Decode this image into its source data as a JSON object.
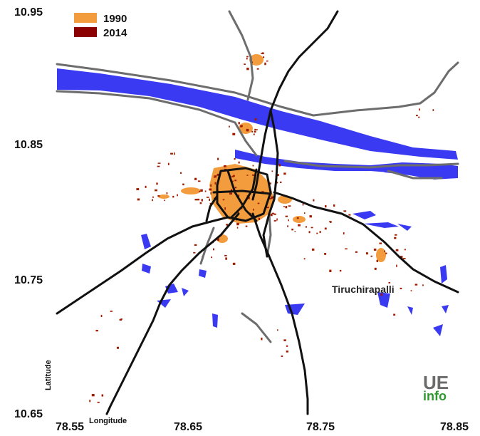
{
  "map": {
    "city_label": "Tiruchirapalli",
    "x_axis_title": "Longitude",
    "y_axis_title": "Latitude",
    "x_ticks": [
      "78.55",
      "78.65",
      "78.75",
      "78.85"
    ],
    "y_ticks": [
      "10.95",
      "10.85",
      "10.75",
      "10.65"
    ],
    "extent": {
      "lon_min": 78.55,
      "lon_max": 78.85,
      "lat_min": 10.65,
      "lat_max": 10.95
    }
  },
  "legend": {
    "items": [
      {
        "label": "1990",
        "color": "#f39c3d"
      },
      {
        "label": "2014",
        "color": "#8b0000"
      }
    ]
  },
  "colors": {
    "water": "#3a3af2",
    "urban_1990": "#f39c3d",
    "urban_2014": "#a01c00",
    "road_major": "#111111",
    "road_minor": "#6d6d6d"
  },
  "logo": {
    "line1": "UE",
    "line2": "info"
  }
}
